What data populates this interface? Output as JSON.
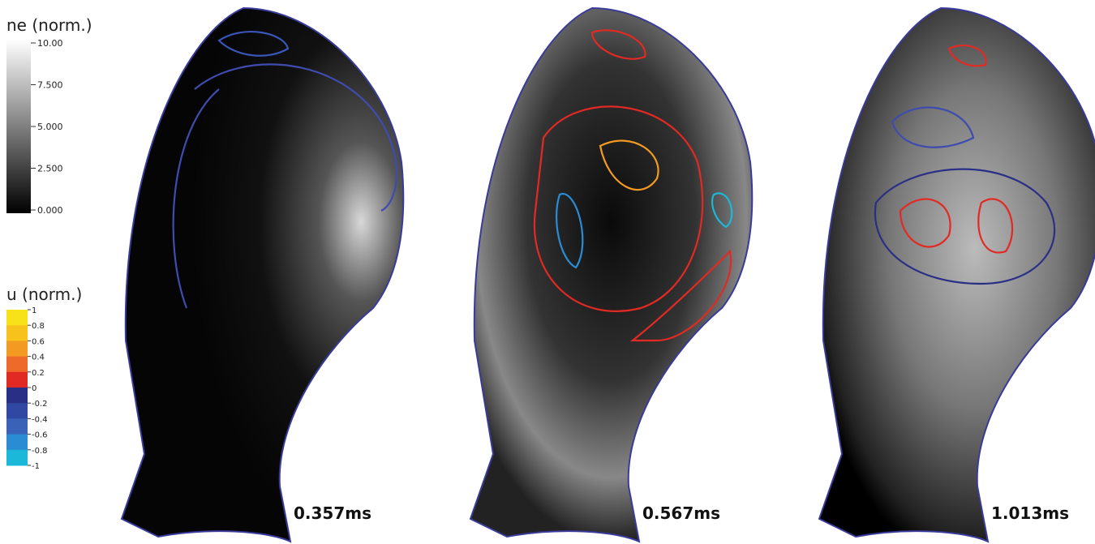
{
  "colorbars": [
    {
      "title": "ne (norm.)",
      "ticks": [
        "10.00",
        "7.500",
        "5.000",
        "2.500",
        "0.000"
      ]
    },
    {
      "title": "u (norm.)",
      "ticks": [
        "1",
        "0.8",
        "0.6",
        "0.4",
        "0.2",
        "0",
        "-0.2",
        "-0.4",
        "-0.6",
        "-0.8",
        "-1"
      ],
      "colors": [
        "#f7e21a",
        "#f8c21c",
        "#f39a22",
        "#ee6a2a",
        "#e22a24",
        "#2a2f86",
        "#3148a2",
        "#3a62b6",
        "#2a8cd2",
        "#1cb8da"
      ]
    }
  ],
  "panels": [
    {
      "time": "0.357ms"
    },
    {
      "time": "0.567ms"
    },
    {
      "time": "1.013ms"
    }
  ]
}
